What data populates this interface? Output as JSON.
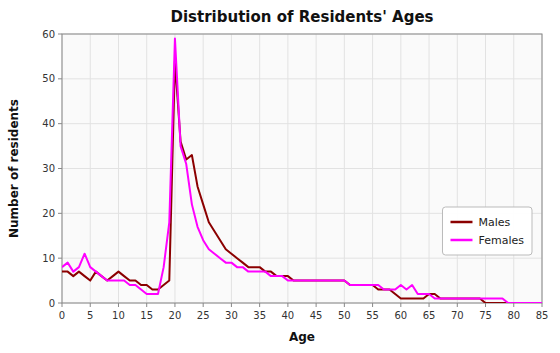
{
  "chart_data": {
    "type": "line",
    "title": "Distribution of Residents' Ages",
    "xlabel": "Age",
    "ylabel": "Number of residents",
    "x": [
      0,
      1,
      2,
      3,
      4,
      5,
      6,
      7,
      8,
      9,
      10,
      11,
      12,
      13,
      14,
      15,
      16,
      17,
      18,
      19,
      20,
      21,
      22,
      23,
      24,
      25,
      26,
      27,
      28,
      29,
      30,
      31,
      32,
      33,
      34,
      35,
      36,
      37,
      38,
      39,
      40,
      41,
      42,
      43,
      44,
      45,
      46,
      47,
      48,
      49,
      50,
      51,
      52,
      53,
      54,
      55,
      56,
      57,
      58,
      59,
      60,
      61,
      62,
      63,
      64,
      65,
      66,
      67,
      68,
      69,
      70,
      71,
      72,
      73,
      74,
      75,
      76,
      77,
      78,
      79,
      80,
      81,
      82,
      83,
      84,
      85
    ],
    "series": [
      {
        "name": "Males",
        "color": "#8B0000",
        "values": [
          7,
          7,
          6,
          7,
          6,
          5,
          7,
          6,
          5,
          6,
          7,
          6,
          5,
          5,
          4,
          4,
          3,
          3,
          4,
          5,
          54,
          36,
          32,
          33,
          26,
          22,
          18,
          16,
          14,
          12,
          11,
          10,
          9,
          8,
          8,
          8,
          7,
          7,
          6,
          6,
          6,
          5,
          5,
          5,
          5,
          5,
          5,
          5,
          5,
          5,
          5,
          4,
          4,
          4,
          4,
          4,
          3,
          3,
          3,
          2,
          1,
          1,
          1,
          1,
          1,
          2,
          2,
          1,
          1,
          1,
          1,
          1,
          1,
          1,
          1,
          0,
          0,
          0,
          0,
          0,
          0,
          0,
          0,
          0,
          0,
          0
        ]
      },
      {
        "name": "Females",
        "color": "#FF00FF",
        "values": [
          8,
          9,
          7,
          8,
          11,
          8,
          7,
          6,
          5,
          5,
          5,
          5,
          4,
          4,
          3,
          2,
          2,
          2,
          8,
          18,
          59,
          35,
          31,
          22,
          17,
          14,
          12,
          11,
          10,
          9,
          9,
          8,
          8,
          7,
          7,
          7,
          7,
          6,
          6,
          6,
          5,
          5,
          5,
          5,
          5,
          5,
          5,
          5,
          5,
          5,
          5,
          4,
          4,
          4,
          4,
          4,
          4,
          3,
          3,
          3,
          4,
          3,
          4,
          2,
          2,
          2,
          1,
          1,
          1,
          1,
          1,
          1,
          1,
          1,
          1,
          1,
          1,
          1,
          1,
          0,
          0,
          0,
          0,
          0,
          0,
          0
        ]
      }
    ],
    "xlim": [
      0,
      85
    ],
    "ylim": [
      0,
      60
    ],
    "xticks": [
      0,
      5,
      10,
      15,
      20,
      25,
      30,
      35,
      40,
      45,
      50,
      55,
      60,
      65,
      70,
      75,
      80,
      85
    ],
    "yticks": [
      0,
      10,
      20,
      30,
      40,
      50,
      60
    ],
    "grid": true,
    "legend": "lower right"
  }
}
